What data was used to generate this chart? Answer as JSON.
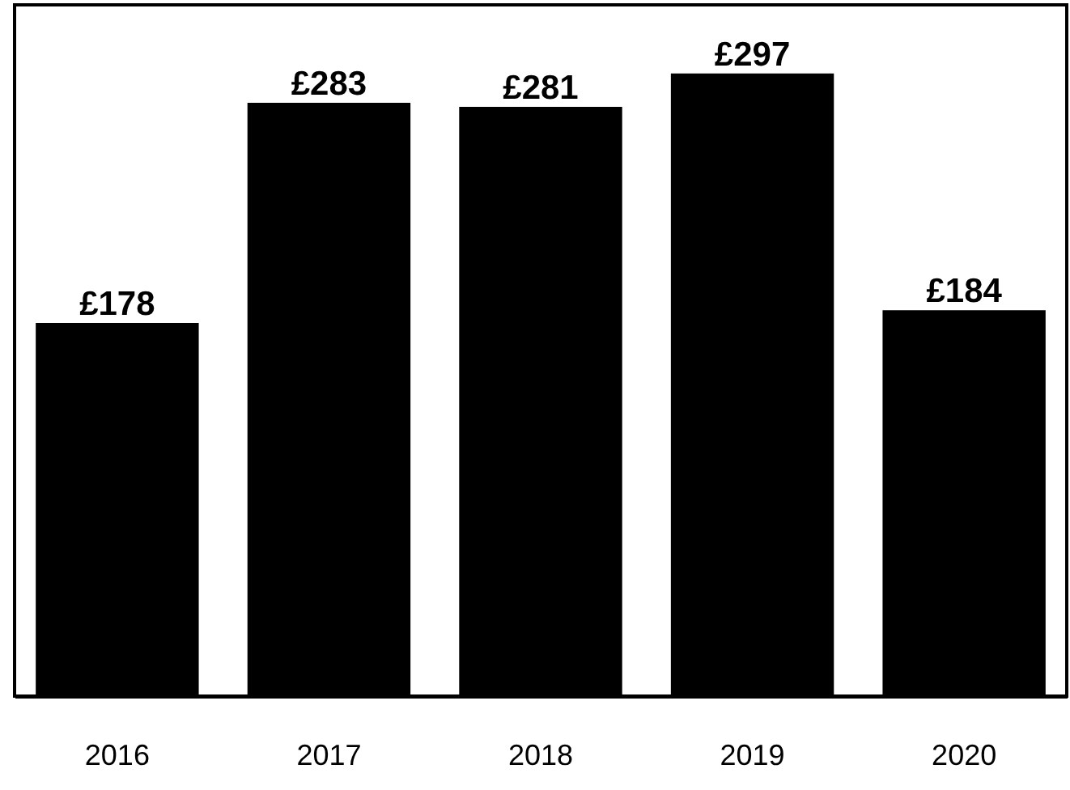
{
  "chart_data": {
    "type": "bar",
    "categories": [
      "2016",
      "2017",
      "2018",
      "2019",
      "2020"
    ],
    "values": [
      178,
      283,
      281,
      297,
      184
    ],
    "color": "#000000",
    "value_labels": [
      "£178",
      "£283",
      "£281",
      "£297",
      "£184"
    ],
    "grid": false
  }
}
